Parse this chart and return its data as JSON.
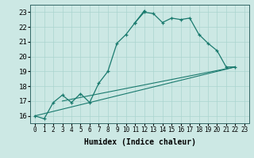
{
  "xlabel": "Humidex (Indice chaleur)",
  "bg_color": "#cce8e4",
  "line_color": "#1a7a6e",
  "grid_color": "#aad4cf",
  "xlim": [
    -0.5,
    23.5
  ],
  "ylim": [
    15.5,
    23.5
  ],
  "xticks": [
    0,
    1,
    2,
    3,
    4,
    5,
    6,
    7,
    8,
    9,
    10,
    11,
    12,
    13,
    14,
    15,
    16,
    17,
    18,
    19,
    20,
    21,
    22,
    23
  ],
  "yticks": [
    16,
    17,
    18,
    19,
    20,
    21,
    22,
    23
  ],
  "series": [
    {
      "x": [
        0,
        1,
        2,
        3,
        4,
        5,
        6,
        7,
        8,
        9,
        10,
        11,
        12
      ],
      "y": [
        16.0,
        15.8,
        16.9,
        17.4,
        16.9,
        17.5,
        16.9,
        18.2,
        19.0,
        20.9,
        21.5,
        22.3,
        23.1
      ]
    },
    {
      "x": [
        11,
        12,
        13,
        14,
        15,
        16,
        17,
        18,
        19,
        20,
        21,
        22
      ],
      "y": [
        22.3,
        23.0,
        22.9,
        22.3,
        22.6,
        22.5,
        22.6,
        21.5,
        20.9,
        20.4,
        19.3,
        19.3
      ]
    },
    {
      "x": [
        0,
        22
      ],
      "y": [
        16.0,
        19.3
      ]
    },
    {
      "x": [
        3,
        22
      ],
      "y": [
        17.0,
        19.3
      ]
    }
  ]
}
